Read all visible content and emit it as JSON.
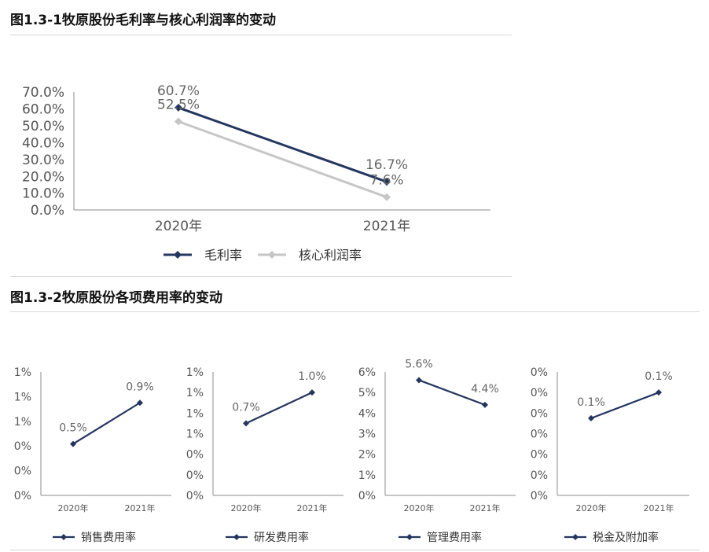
{
  "figures": [
    {
      "title": "图1.3-1牧原股份毛利率与核心利润率的变动"
    },
    {
      "title": "图1.3-2牧原股份各项费用率的变动"
    }
  ],
  "colors": {
    "navy": "#243660",
    "gray": "#c6c6c6",
    "axis": "#8c8c8c"
  },
  "chart_data": [
    {
      "type": "line",
      "categories": [
        "2020年",
        "2021年"
      ],
      "ylim": [
        0,
        70
      ],
      "yticks": [
        "0.0%",
        "10.0%",
        "20.0%",
        "30.0%",
        "40.0%",
        "50.0%",
        "60.0%",
        "70.0%"
      ],
      "legend_position": "bottom",
      "series": [
        {
          "name": "毛利率",
          "values": [
            60.7,
            16.7
          ],
          "labels": [
            "60.7%",
            "16.7%"
          ],
          "color": "#243660"
        },
        {
          "name": "核心利润率",
          "values": [
            52.5,
            7.6
          ],
          "labels": [
            "52.5%",
            "7.6%"
          ],
          "color": "#c6c6c6"
        }
      ]
    },
    {
      "type": "line",
      "categories": [
        "2020年",
        "2021年"
      ],
      "ylim": [
        0,
        1.2
      ],
      "yticks": [
        "0%",
        "0%",
        "0%",
        "1%",
        "1%",
        "1%"
      ],
      "legend_position": "bottom",
      "series": [
        {
          "name": "销售费用率",
          "values": [
            0.5,
            0.9
          ],
          "labels": [
            "0.5%",
            "0.9%"
          ],
          "color": "#243660"
        }
      ]
    },
    {
      "type": "line",
      "categories": [
        "2020年",
        "2021年"
      ],
      "ylim": [
        0,
        1.2
      ],
      "yticks": [
        "0%",
        "0%",
        "0%",
        "1%",
        "1%",
        "1%",
        "1%"
      ],
      "legend_position": "bottom",
      "series": [
        {
          "name": "研发费用率",
          "values": [
            0.7,
            1.0
          ],
          "labels": [
            "0.7%",
            "1.0%"
          ],
          "color": "#243660"
        }
      ]
    },
    {
      "type": "line",
      "categories": [
        "2020年",
        "2021年"
      ],
      "ylim": [
        0,
        6
      ],
      "yticks": [
        "0%",
        "1%",
        "2%",
        "3%",
        "4%",
        "5%",
        "6%"
      ],
      "legend_position": "bottom",
      "series": [
        {
          "name": "管理费用率",
          "values": [
            5.6,
            4.4
          ],
          "labels": [
            "5.6%",
            "4.4%"
          ],
          "color": "#243660"
        }
      ]
    },
    {
      "type": "line",
      "categories": [
        "2020年",
        "2021年"
      ],
      "ylim": [
        0,
        0.12
      ],
      "yticks": [
        "0%",
        "0%",
        "0%",
        "0%",
        "0%",
        "0%",
        "0%"
      ],
      "legend_position": "bottom",
      "series": [
        {
          "name": "税金及附加率",
          "values": [
            0.075,
            0.1
          ],
          "labels": [
            "0.1%",
            "0.1%"
          ],
          "color": "#243660"
        }
      ]
    }
  ]
}
